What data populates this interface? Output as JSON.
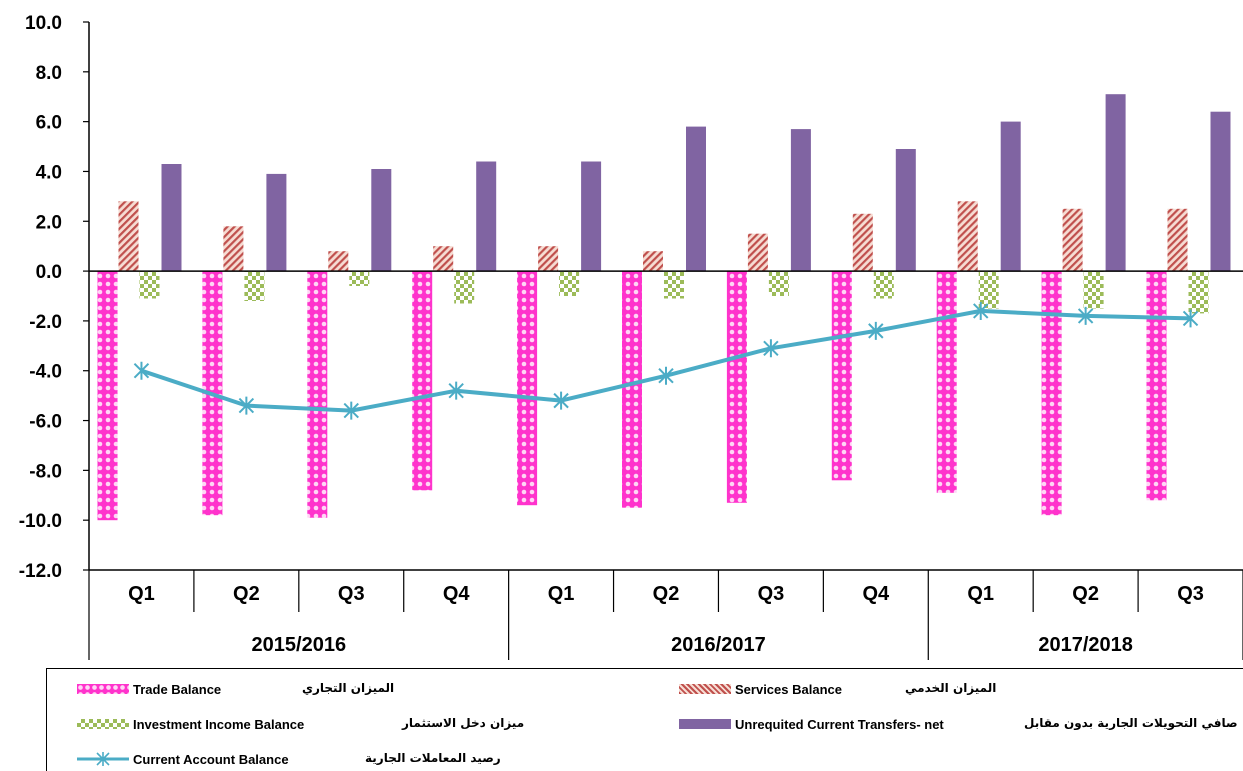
{
  "chart_data": {
    "type": "bar",
    "ylim": [
      -12,
      10
    ],
    "y_ticks": [
      "10.0",
      "8.0",
      "6.0",
      "4.0",
      "2.0",
      "0.0",
      "-2.0",
      "-4.0",
      "-6.0",
      "-8.0",
      "-10.0",
      "-12.0"
    ],
    "categories": [
      "Q1",
      "Q2",
      "Q3",
      "Q4",
      "Q1",
      "Q2",
      "Q3",
      "Q4",
      "Q1",
      "Q2",
      "Q3"
    ],
    "groups": [
      {
        "label": "2015/2016",
        "count": 4
      },
      {
        "label": "2016/2017",
        "count": 4
      },
      {
        "label": "2017/2018",
        "count": 3
      }
    ],
    "series": [
      {
        "name": "Trade Balance",
        "name_ar": "الميزان التجاري",
        "kind": "bar",
        "color": "#ff33cc",
        "values": [
          -10.0,
          -9.8,
          -9.9,
          -8.8,
          -9.4,
          -9.5,
          -9.3,
          -8.4,
          -8.9,
          -9.8,
          -9.2
        ]
      },
      {
        "name": "Services Balance",
        "name_ar": "الميزان الخدمي",
        "kind": "bar",
        "color": "#d98c7a",
        "values": [
          2.8,
          1.8,
          0.8,
          1.0,
          1.0,
          0.8,
          1.5,
          2.3,
          2.8,
          2.5,
          2.5
        ]
      },
      {
        "name": "Investment Income Balance",
        "name_ar": "ميزان دخل الاستثمار",
        "kind": "bar",
        "color": "#9cbb59",
        "values": [
          -1.1,
          -1.2,
          -0.6,
          -1.3,
          -1.0,
          -1.1,
          -1.0,
          -1.1,
          -1.5,
          -1.5,
          -1.7
        ]
      },
      {
        "name": "Unrequited Current Transfers- net",
        "name_ar": "صافي التحويلات الجارية بدون مقابل",
        "kind": "bar",
        "color": "#8064a2",
        "values": [
          4.3,
          3.9,
          4.1,
          4.4,
          4.4,
          5.8,
          5.7,
          4.9,
          6.0,
          7.1,
          6.4
        ]
      },
      {
        "name": "Current Account Balance",
        "name_ar": "رصيد المعاملات الجارية",
        "kind": "line",
        "color": "#4bacc6",
        "values": [
          -4.0,
          -5.4,
          -5.6,
          -4.8,
          -5.2,
          -4.2,
          -3.1,
          -2.4,
          -1.6,
          -1.8,
          -1.9
        ]
      }
    ],
    "grid": false
  }
}
